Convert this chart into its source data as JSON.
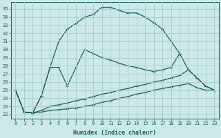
{
  "xlabel": "Humidex (Indice chaleur)",
  "bg_color": "#cce8e8",
  "grid_color": "#aacccc",
  "line_color": "#1a6060",
  "xlim": [
    -0.5,
    23.5
  ],
  "ylim": [
    21.5,
    35.8
  ],
  "xticks": [
    0,
    1,
    2,
    3,
    4,
    5,
    6,
    7,
    8,
    9,
    10,
    11,
    12,
    13,
    14,
    15,
    16,
    17,
    18,
    19,
    20,
    21,
    22,
    23
  ],
  "yticks": [
    22,
    23,
    24,
    25,
    26,
    27,
    28,
    29,
    30,
    31,
    32,
    33,
    34,
    35
  ],
  "line_upper_x": [
    0,
    1,
    2,
    3,
    4,
    5,
    6,
    7,
    8,
    9,
    10,
    11,
    12,
    13,
    14,
    15,
    16,
    17,
    18,
    19
  ],
  "line_upper_y": [
    25.0,
    22.3,
    22.2,
    24.3,
    27.8,
    31.0,
    32.5,
    33.2,
    34.0,
    34.3,
    35.2,
    35.2,
    34.8,
    34.5,
    34.5,
    34.0,
    33.3,
    32.5,
    31.0,
    29.5
  ],
  "line_mid_x": [
    0,
    1,
    2,
    3,
    4,
    5,
    6,
    7,
    8,
    9,
    10,
    11,
    12,
    13,
    14,
    15,
    16,
    17,
    18,
    19,
    20,
    21,
    22,
    23
  ],
  "line_mid_y": [
    25.0,
    22.3,
    22.2,
    24.3,
    27.8,
    27.8,
    25.5,
    27.8,
    30.0,
    29.5,
    29.0,
    28.7,
    28.3,
    28.0,
    27.8,
    27.5,
    27.3,
    27.5,
    27.8,
    29.5,
    27.5,
    26.5,
    25.5,
    25.0
  ],
  "line_low_x": [
    0,
    1,
    2,
    3,
    4,
    5,
    6,
    7,
    8,
    9,
    10,
    11,
    12,
    13,
    14,
    15,
    16,
    17,
    18,
    19,
    20,
    21,
    22,
    23
  ],
  "line_low_y": [
    25.0,
    22.3,
    22.2,
    22.5,
    23.0,
    23.2,
    23.4,
    23.7,
    23.9,
    24.2,
    24.5,
    24.7,
    25.0,
    25.2,
    25.5,
    25.7,
    26.0,
    26.2,
    26.5,
    26.8,
    27.5,
    26.5,
    25.5,
    25.0
  ],
  "line_flat_x": [
    0,
    1,
    2,
    3,
    4,
    5,
    6,
    7,
    8,
    9,
    10,
    11,
    12,
    13,
    14,
    15,
    16,
    17,
    18,
    19,
    20,
    21,
    22,
    23
  ],
  "line_flat_y": [
    25.0,
    22.3,
    22.2,
    22.3,
    22.5,
    22.6,
    22.7,
    22.8,
    23.0,
    23.2,
    23.5,
    23.7,
    24.0,
    24.2,
    24.5,
    24.7,
    25.0,
    25.2,
    25.4,
    25.6,
    25.8,
    25.3,
    25.0,
    25.0
  ],
  "figsize": [
    3.2,
    2.0
  ],
  "dpi": 100
}
